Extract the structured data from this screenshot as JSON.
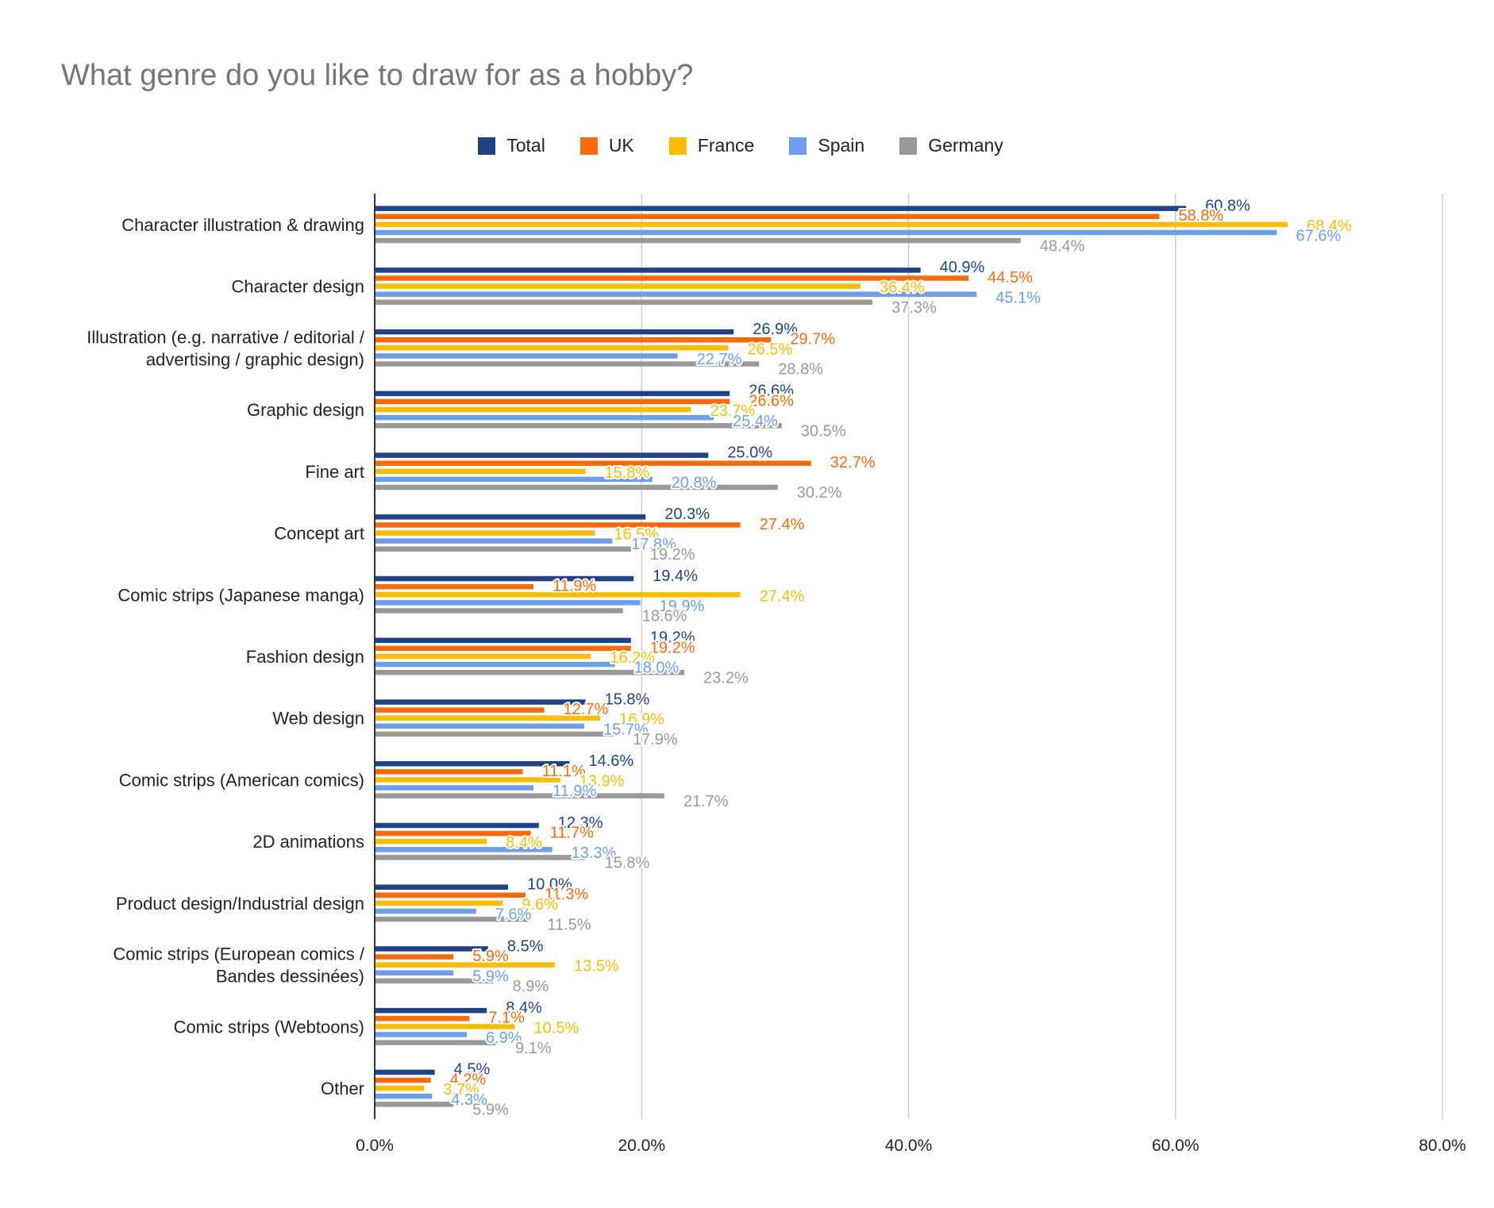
{
  "title": "What genre do you like to draw for as a hobby?",
  "legend": [
    {
      "name": "Total",
      "color": "#1f4386"
    },
    {
      "name": "UK",
      "color": "#fa6a0a"
    },
    {
      "name": "France",
      "color": "#fbbc04"
    },
    {
      "name": "Spain",
      "color": "#6d9eeb"
    },
    {
      "name": "Germany",
      "color": "#999999"
    }
  ],
  "chart_data": {
    "type": "bar",
    "orientation": "horizontal",
    "title": "What genre do you like to draw for as a hobby?",
    "xlabel": "",
    "ylabel": "",
    "xlim": [
      0,
      80
    ],
    "x_ticks": [
      "0.0%",
      "20.0%",
      "40.0%",
      "60.0%",
      "80.0%"
    ],
    "x_tick_values": [
      0,
      20,
      40,
      60,
      80
    ],
    "grid": "vertical",
    "legend_position": "top",
    "data_labels": true,
    "categories": [
      "Character illustration & drawing",
      "Character design",
      "Illustration (e.g. narrative / editorial / advertising / graphic design)",
      "Graphic design",
      "Fine art",
      "Concept art",
      "Comic strips (Japanese manga)",
      "Fashion design",
      "Web design",
      "Comic strips (American comics)",
      "2D animations",
      "Product design/Industrial design",
      "Comic strips (European comics / Bandes dessinées)",
      "Comic strips (Webtoons)",
      "Other"
    ],
    "category_lines": [
      [
        "Character illustration & drawing"
      ],
      [
        "Character design"
      ],
      [
        "Illustration (e.g. narrative / editorial /",
        "advertising / graphic design)"
      ],
      [
        "Graphic design"
      ],
      [
        "Fine art"
      ],
      [
        "Concept art"
      ],
      [
        "Comic strips (Japanese manga)"
      ],
      [
        "Fashion design"
      ],
      [
        "Web design"
      ],
      [
        "Comic strips (American comics)"
      ],
      [
        "2D animations"
      ],
      [
        "Product design/Industrial design"
      ],
      [
        "Comic strips (European comics /",
        "Bandes dessinées)"
      ],
      [
        "Comic strips (Webtoons)"
      ],
      [
        "Other"
      ]
    ],
    "series": [
      {
        "name": "Total",
        "color": "#1f4386",
        "values": [
          60.8,
          40.9,
          26.9,
          26.6,
          25.0,
          20.3,
          19.4,
          19.2,
          15.8,
          14.6,
          12.3,
          10.0,
          8.5,
          8.4,
          4.5
        ],
        "labels": [
          "60.8%",
          "40.9%",
          "26.9%",
          "26.6%",
          "25.0%",
          "20.3%",
          "19.4%",
          "19.2%",
          "15.8%",
          "14.6%",
          "12.3%",
          "10.0%",
          "8.5%",
          "8.4%",
          "4.5%"
        ]
      },
      {
        "name": "UK",
        "color": "#fa6a0a",
        "values": [
          58.8,
          44.5,
          29.7,
          26.6,
          32.7,
          27.4,
          11.9,
          19.2,
          12.7,
          11.1,
          11.7,
          11.3,
          5.9,
          7.1,
          4.2
        ],
        "labels": [
          "58.8%",
          "44.5%",
          "29.7%",
          "26.6%",
          "32.7%",
          "27.4%",
          "11.9%",
          "19.2%",
          "12.7%",
          "11.1%",
          "11.7%",
          "11.3%",
          "5.9%",
          "7.1%",
          "4.2%"
        ]
      },
      {
        "name": "France",
        "color": "#fbbc04",
        "values": [
          68.4,
          36.4,
          26.5,
          23.7,
          15.8,
          16.5,
          27.4,
          16.2,
          16.9,
          13.9,
          8.4,
          9.6,
          13.5,
          10.5,
          3.7
        ],
        "labels": [
          "68.4%",
          "36.4%",
          "26.5%",
          "23.7%",
          "15.8%",
          "16.5%",
          "27.4%",
          "16.2%",
          "16.9%",
          "13.9%",
          "8.4%",
          "9.6%",
          "13.5%",
          "10.5%",
          "3.7%"
        ]
      },
      {
        "name": "Spain",
        "color": "#6d9eeb",
        "values": [
          67.6,
          45.1,
          22.7,
          25.4,
          20.8,
          17.8,
          19.9,
          18.0,
          15.7,
          11.9,
          13.3,
          7.6,
          5.9,
          6.9,
          4.3
        ],
        "labels": [
          "67.6%",
          "45.1%",
          "22.7%",
          "25.4%",
          "20.8%",
          "17.8%",
          "19.9%",
          "18.0%",
          "15.7%",
          "11.9%",
          "13.3%",
          "7.6%",
          "5.9%",
          "6.9%",
          "4.3%"
        ]
      },
      {
        "name": "Germany",
        "color": "#999999",
        "values": [
          48.4,
          37.3,
          28.8,
          30.5,
          30.2,
          19.2,
          18.6,
          23.2,
          17.9,
          21.7,
          15.8,
          11.5,
          8.9,
          9.1,
          5.9
        ],
        "labels": [
          "48.4%",
          "37.3%",
          "28.8%",
          "30.5%",
          "30.2%",
          "19.2%",
          "18.6%",
          "23.2%",
          "17.9%",
          "21.7%",
          "15.8%",
          "11.5%",
          "8.9%",
          "9.1%",
          "5.9%"
        ]
      }
    ]
  }
}
